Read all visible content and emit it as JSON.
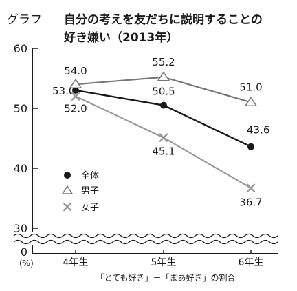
{
  "chart_data": {
    "type": "line",
    "title_label": "グラフ",
    "title_line1": "自分の考えを友だちに説明することの",
    "title_line2": "好き嫌い（2013年）",
    "categories": [
      "4年生",
      "5年生",
      "6年生"
    ],
    "xlabel": "「とても好き」＋「まあ好き」の割合",
    "ylabel": "",
    "y_unit": "(%)",
    "y_ticks": [
      "60",
      "50",
      "40",
      "30",
      "0"
    ],
    "axis_break": true,
    "ylim_display": [
      30,
      60
    ],
    "grid": false,
    "legend_position": "left-middle",
    "series": [
      {
        "name": "全体",
        "marker": "circle",
        "color": "#1a1a1a",
        "values": [
          53.0,
          50.5,
          43.6
        ],
        "labels": [
          "53.0",
          "50.5",
          "43.6"
        ]
      },
      {
        "name": "男子",
        "marker": "triangle",
        "color": "#777777",
        "values": [
          54.0,
          55.2,
          51.0
        ],
        "labels": [
          "54.0",
          "55.2",
          "51.0"
        ]
      },
      {
        "name": "女子",
        "marker": "cross",
        "color": "#9a9a9a",
        "values": [
          52.0,
          45.1,
          36.7
        ],
        "labels": [
          "52.0",
          "45.1",
          "36.7"
        ]
      }
    ]
  }
}
